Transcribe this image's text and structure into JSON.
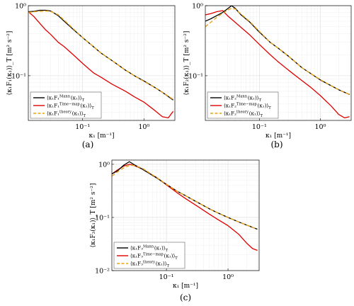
{
  "chart_data": [
    {
      "type": "line",
      "panel": "(a)",
      "xlabel": "κ₁ [m⁻¹]",
      "ylabel": "⟨κ₁F₁(κ₁)⟩_T [m² s⁻²]",
      "xscale": "log",
      "yscale": "log",
      "xlim": [
        0.013,
        3.2
      ],
      "ylim": [
        0.023,
        1.0
      ],
      "xticks": [
        {
          "v": 0.1,
          "label": "10⁻¹"
        },
        {
          "v": 1,
          "label": "10⁰"
        }
      ],
      "yticks": [
        {
          "v": 0.1,
          "label": "10⁻¹"
        },
        {
          "v": 1,
          "label": "10⁰"
        }
      ],
      "grid": true,
      "legend_position": "bottom-left",
      "series": [
        {
          "name": "⟨κ₁F₁^Mann(κ₁)⟩_T",
          "color": "#000000",
          "style": "solid",
          "x": [
            0.013,
            0.016,
            0.02,
            0.025,
            0.03,
            0.04,
            0.05,
            0.07,
            0.1,
            0.15,
            0.2,
            0.3,
            0.5,
            0.7,
            1.0,
            1.5,
            2.0,
            3.0
          ],
          "y": [
            0.82,
            0.83,
            0.86,
            0.86,
            0.84,
            0.72,
            0.6,
            0.46,
            0.35,
            0.26,
            0.21,
            0.165,
            0.12,
            0.1,
            0.084,
            0.068,
            0.058,
            0.045
          ]
        },
        {
          "name": "⟨κ₁F₁^Time−map(κ₁)⟩_T",
          "color": "#e00000",
          "style": "solid",
          "x": [
            0.013,
            0.016,
            0.02,
            0.025,
            0.03,
            0.04,
            0.05,
            0.07,
            0.1,
            0.15,
            0.2,
            0.3,
            0.5,
            0.7,
            1.0,
            1.5,
            2.0,
            2.5,
            3.0
          ],
          "y": [
            0.82,
            0.7,
            0.56,
            0.45,
            0.39,
            0.3,
            0.26,
            0.2,
            0.15,
            0.11,
            0.095,
            0.076,
            0.06,
            0.05,
            0.042,
            0.032,
            0.026,
            0.025,
            0.031
          ]
        },
        {
          "name": "⟨κ₁F₁^theory(κ₁)⟩_T",
          "color": "#e8a317",
          "style": "dashed",
          "x": [
            0.013,
            0.016,
            0.02,
            0.025,
            0.03,
            0.04,
            0.05,
            0.07,
            0.1,
            0.15,
            0.2,
            0.3,
            0.5,
            0.7,
            1.0,
            1.5,
            2.0,
            3.0
          ],
          "y": [
            0.8,
            0.82,
            0.83,
            0.84,
            0.83,
            0.74,
            0.62,
            0.47,
            0.35,
            0.26,
            0.21,
            0.165,
            0.12,
            0.1,
            0.083,
            0.068,
            0.058,
            0.046
          ]
        }
      ]
    },
    {
      "type": "line",
      "panel": "(b)",
      "xlabel": "κ₁ [m⁻¹]",
      "ylabel": "⟨κ₁F₂(κ₁)⟩_T [m² s⁻²]",
      "xscale": "log",
      "yscale": "log",
      "xlim": [
        0.013,
        3.2
      ],
      "ylim": [
        0.023,
        1.0
      ],
      "xticks": [
        {
          "v": 0.1,
          "label": "10⁻¹"
        },
        {
          "v": 1,
          "label": "10⁰"
        }
      ],
      "yticks": [
        {
          "v": 0.1,
          "label": "10⁻¹"
        },
        {
          "v": 1,
          "label": "10⁰"
        }
      ],
      "grid": true,
      "legend_position": "bottom-left",
      "series": [
        {
          "name": "⟨κ₁F₂^Mann(κ₁)⟩_T",
          "color": "#000000",
          "style": "solid",
          "x": [
            0.013,
            0.016,
            0.02,
            0.025,
            0.03,
            0.035,
            0.04,
            0.05,
            0.07,
            0.1,
            0.15,
            0.2,
            0.3,
            0.5,
            0.7,
            1.0,
            1.5,
            2.0,
            3.0
          ],
          "y": [
            0.6,
            0.65,
            0.72,
            0.8,
            0.9,
            1.0,
            0.92,
            0.74,
            0.58,
            0.42,
            0.3,
            0.25,
            0.19,
            0.13,
            0.107,
            0.087,
            0.072,
            0.063,
            0.054
          ]
        },
        {
          "name": "⟨κ₁F₂^Time−map(κ₁)⟩_T",
          "color": "#e00000",
          "style": "solid",
          "x": [
            0.013,
            0.016,
            0.02,
            0.025,
            0.03,
            0.04,
            0.05,
            0.07,
            0.1,
            0.15,
            0.2,
            0.3,
            0.5,
            0.7,
            1.0,
            1.5,
            2.0,
            2.5,
            3.0
          ],
          "y": [
            0.74,
            0.77,
            0.82,
            0.85,
            0.72,
            0.58,
            0.49,
            0.38,
            0.28,
            0.2,
            0.16,
            0.12,
            0.085,
            0.068,
            0.052,
            0.037,
            0.028,
            0.025,
            0.026
          ]
        },
        {
          "name": "⟨κ₁F₂^theory(κ₁)⟩_T",
          "color": "#e8a317",
          "style": "dashed",
          "x": [
            0.013,
            0.016,
            0.02,
            0.025,
            0.03,
            0.035,
            0.04,
            0.05,
            0.07,
            0.1,
            0.15,
            0.2,
            0.3,
            0.5,
            0.7,
            1.0,
            1.5,
            2.0,
            3.0
          ],
          "y": [
            0.5,
            0.58,
            0.68,
            0.78,
            0.86,
            0.92,
            0.9,
            0.76,
            0.59,
            0.43,
            0.3,
            0.25,
            0.19,
            0.13,
            0.107,
            0.088,
            0.072,
            0.063,
            0.054
          ]
        }
      ]
    },
    {
      "type": "line",
      "panel": "(c)",
      "xlabel": "κ₁ [m⁻¹]",
      "ylabel": "⟨κ₁F₃(κ₁)⟩_T [m² s⁻²]",
      "xscale": "log",
      "yscale": "log",
      "xlim": [
        0.013,
        3.2
      ],
      "ylim": [
        0.01,
        1.2
      ],
      "xticks": [
        {
          "v": 0.1,
          "label": "10⁻¹"
        },
        {
          "v": 1,
          "label": "10⁰"
        }
      ],
      "yticks": [
        {
          "v": 0.01,
          "label": "10⁻²"
        },
        {
          "v": 0.1,
          "label": "10⁻¹"
        },
        {
          "v": 1,
          "label": "10⁰"
        }
      ],
      "grid": true,
      "legend_position": "bottom-left",
      "series": [
        {
          "name": "⟨κ₁F₃^Mann(κ₁)⟩_T",
          "color": "#000000",
          "style": "solid",
          "x": [
            0.013,
            0.016,
            0.02,
            0.025,
            0.03,
            0.04,
            0.05,
            0.07,
            0.1,
            0.15,
            0.2,
            0.3,
            0.5,
            0.7,
            1.0,
            1.5,
            2.0,
            3.0
          ],
          "y": [
            0.66,
            0.75,
            0.95,
            1.12,
            0.98,
            0.82,
            0.7,
            0.55,
            0.42,
            0.31,
            0.26,
            0.2,
            0.145,
            0.12,
            0.1,
            0.082,
            0.072,
            0.06
          ]
        },
        {
          "name": "⟨κ₁F₃^Time−map(κ₁)⟩_T",
          "color": "#e00000",
          "style": "solid",
          "x": [
            0.013,
            0.016,
            0.02,
            0.025,
            0.03,
            0.04,
            0.05,
            0.07,
            0.1,
            0.15,
            0.2,
            0.3,
            0.5,
            0.7,
            1.0,
            1.5,
            2.0,
            2.5,
            3.0
          ],
          "y": [
            0.66,
            0.78,
            0.92,
            1.0,
            0.95,
            0.82,
            0.7,
            0.56,
            0.41,
            0.29,
            0.23,
            0.17,
            0.115,
            0.09,
            0.07,
            0.048,
            0.033,
            0.026,
            0.024
          ]
        },
        {
          "name": "⟨κ₁F₃^theory(κ₁)⟩_T",
          "color": "#e8a317",
          "style": "dashed",
          "x": [
            0.013,
            0.016,
            0.02,
            0.025,
            0.03,
            0.04,
            0.05,
            0.07,
            0.1,
            0.15,
            0.2,
            0.3,
            0.5,
            0.7,
            1.0,
            1.5,
            2.0,
            3.0
          ],
          "y": [
            0.6,
            0.72,
            0.85,
            0.95,
            0.95,
            0.85,
            0.72,
            0.56,
            0.42,
            0.31,
            0.26,
            0.2,
            0.145,
            0.12,
            0.1,
            0.082,
            0.072,
            0.06
          ]
        }
      ]
    }
  ]
}
